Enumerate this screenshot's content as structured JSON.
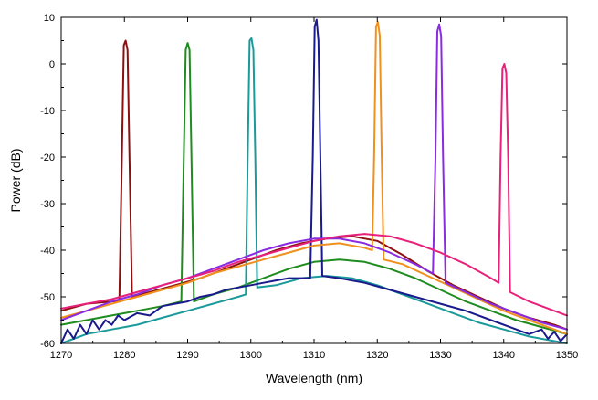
{
  "chart_data": {
    "type": "line",
    "title": "",
    "xlabel": "Wavelength (nm)",
    "ylabel": "Power (dB)",
    "xlim": [
      1270,
      1350
    ],
    "ylim": [
      -60,
      10
    ],
    "xticks": [
      1270,
      1280,
      1290,
      1300,
      1310,
      1320,
      1330,
      1340,
      1350
    ],
    "yticks": [
      10,
      0,
      -10,
      -20,
      -30,
      -40,
      -50,
      -60
    ],
    "xtick_labels": [
      "1270",
      "1280",
      "1290",
      "1300",
      "1310",
      "1320",
      "1330",
      "1340",
      "1350"
    ],
    "ytick_labels": [
      "10",
      "0",
      "-10",
      "-20",
      "-30",
      "-40",
      "-50",
      "-60"
    ],
    "grid": false,
    "legend": "none",
    "series": [
      {
        "color": "#8B1010",
        "points": [
          [
            1270,
            -53
          ],
          [
            1274,
            -51.5
          ],
          [
            1278,
            -51
          ],
          [
            1279.2,
            -51
          ],
          [
            1279.6,
            -20
          ],
          [
            1279.9,
            4
          ],
          [
            1280.2,
            5
          ],
          [
            1280.5,
            3
          ],
          [
            1280.8,
            -20
          ],
          [
            1281.2,
            -50
          ],
          [
            1284,
            -49
          ],
          [
            1288,
            -47.5
          ],
          [
            1292,
            -46
          ],
          [
            1296,
            -44
          ],
          [
            1300,
            -42
          ],
          [
            1304,
            -40
          ],
          [
            1308,
            -38.5
          ],
          [
            1312,
            -37.5
          ],
          [
            1316,
            -37
          ],
          [
            1320,
            -38
          ],
          [
            1324,
            -41
          ],
          [
            1328,
            -44.5
          ],
          [
            1332,
            -47.5
          ],
          [
            1336,
            -50
          ],
          [
            1340,
            -52.5
          ],
          [
            1344,
            -54.5
          ],
          [
            1348,
            -56
          ],
          [
            1350,
            -57
          ]
        ]
      },
      {
        "color": "#1E8C1E",
        "points": [
          [
            1270,
            -56
          ],
          [
            1274,
            -55
          ],
          [
            1278,
            -54
          ],
          [
            1282,
            -53
          ],
          [
            1286,
            -52
          ],
          [
            1289,
            -51
          ],
          [
            1289.4,
            -20
          ],
          [
            1289.7,
            3
          ],
          [
            1290,
            4.5
          ],
          [
            1290.3,
            3
          ],
          [
            1290.6,
            -20
          ],
          [
            1291,
            -51
          ],
          [
            1294,
            -49.5
          ],
          [
            1298,
            -48
          ],
          [
            1302,
            -46
          ],
          [
            1306,
            -44
          ],
          [
            1310,
            -42.5
          ],
          [
            1314,
            -42
          ],
          [
            1318,
            -42.5
          ],
          [
            1322,
            -44
          ],
          [
            1326,
            -46
          ],
          [
            1330,
            -48.5
          ],
          [
            1334,
            -51
          ],
          [
            1338,
            -53
          ],
          [
            1342,
            -55
          ],
          [
            1346,
            -56.5
          ],
          [
            1350,
            -58
          ]
        ]
      },
      {
        "color": "#1A9A9A",
        "points": [
          [
            1270,
            -60
          ],
          [
            1274,
            -58
          ],
          [
            1278,
            -57
          ],
          [
            1282,
            -56
          ],
          [
            1286,
            -54.5
          ],
          [
            1290,
            -53
          ],
          [
            1294,
            -51.5
          ],
          [
            1298,
            -50
          ],
          [
            1299.2,
            -49.5
          ],
          [
            1299.5,
            -20
          ],
          [
            1299.8,
            5
          ],
          [
            1300.1,
            5.5
          ],
          [
            1300.4,
            3
          ],
          [
            1300.7,
            -20
          ],
          [
            1301,
            -48
          ],
          [
            1304,
            -47.5
          ],
          [
            1308,
            -46
          ],
          [
            1312,
            -45.5
          ],
          [
            1316,
            -46
          ],
          [
            1320,
            -47.5
          ],
          [
            1324,
            -49.5
          ],
          [
            1328,
            -51.5
          ],
          [
            1332,
            -53.5
          ],
          [
            1336,
            -55.5
          ],
          [
            1340,
            -57
          ],
          [
            1344,
            -58.5
          ],
          [
            1350,
            -60
          ]
        ]
      },
      {
        "color": "#1A1A8C",
        "points": [
          [
            1270,
            -60
          ],
          [
            1271,
            -57
          ],
          [
            1272,
            -59
          ],
          [
            1273,
            -56
          ],
          [
            1274,
            -58
          ],
          [
            1275,
            -55
          ],
          [
            1276,
            -57
          ],
          [
            1277,
            -55
          ],
          [
            1278,
            -56
          ],
          [
            1279,
            -54
          ],
          [
            1280,
            -55
          ],
          [
            1282,
            -53.5
          ],
          [
            1284,
            -54
          ],
          [
            1286,
            -52
          ],
          [
            1288,
            -51.5
          ],
          [
            1290,
            -51
          ],
          [
            1292,
            -50
          ],
          [
            1294,
            -49.5
          ],
          [
            1296,
            -48.5
          ],
          [
            1298,
            -48
          ],
          [
            1300,
            -47.5
          ],
          [
            1302,
            -47
          ],
          [
            1304,
            -46.5
          ],
          [
            1306,
            -46
          ],
          [
            1308,
            -46
          ],
          [
            1309.4,
            -46
          ],
          [
            1309.8,
            -20
          ],
          [
            1310.1,
            8
          ],
          [
            1310.4,
            9.5
          ],
          [
            1310.7,
            5
          ],
          [
            1311,
            -20
          ],
          [
            1311.3,
            -45.5
          ],
          [
            1314,
            -46
          ],
          [
            1318,
            -47
          ],
          [
            1322,
            -48.5
          ],
          [
            1326,
            -50
          ],
          [
            1330,
            -51.5
          ],
          [
            1334,
            -53
          ],
          [
            1338,
            -55
          ],
          [
            1342,
            -57
          ],
          [
            1344,
            -58
          ],
          [
            1346,
            -57
          ],
          [
            1347,
            -59
          ],
          [
            1348,
            -57.5
          ],
          [
            1349,
            -59.5
          ],
          [
            1350,
            -58
          ]
        ]
      },
      {
        "color": "#F0901E",
        "points": [
          [
            1270,
            -54.5
          ],
          [
            1274,
            -53
          ],
          [
            1278,
            -51.5
          ],
          [
            1282,
            -50
          ],
          [
            1286,
            -48.5
          ],
          [
            1290,
            -47
          ],
          [
            1294,
            -45
          ],
          [
            1298,
            -43.5
          ],
          [
            1302,
            -42
          ],
          [
            1306,
            -40.5
          ],
          [
            1310,
            -39
          ],
          [
            1314,
            -38.5
          ],
          [
            1318,
            -39.5
          ],
          [
            1319.2,
            -40
          ],
          [
            1319.5,
            -20
          ],
          [
            1319.8,
            8
          ],
          [
            1320.1,
            9
          ],
          [
            1320.4,
            6
          ],
          [
            1320.7,
            -20
          ],
          [
            1321,
            -42
          ],
          [
            1324,
            -43
          ],
          [
            1328,
            -45.5
          ],
          [
            1332,
            -48
          ],
          [
            1336,
            -50.5
          ],
          [
            1340,
            -53
          ],
          [
            1344,
            -55
          ],
          [
            1348,
            -57
          ],
          [
            1350,
            -58
          ]
        ]
      },
      {
        "color": "#8A2BE2",
        "points": [
          [
            1270,
            -55
          ],
          [
            1274,
            -53
          ],
          [
            1278,
            -51
          ],
          [
            1282,
            -49.5
          ],
          [
            1286,
            -47.5
          ],
          [
            1290,
            -46
          ],
          [
            1294,
            -44
          ],
          [
            1298,
            -42
          ],
          [
            1302,
            -40
          ],
          [
            1306,
            -38.5
          ],
          [
            1310,
            -37.5
          ],
          [
            1314,
            -37.5
          ],
          [
            1318,
            -38.5
          ],
          [
            1322,
            -40.5
          ],
          [
            1326,
            -43
          ],
          [
            1328.8,
            -45
          ],
          [
            1329.2,
            -20
          ],
          [
            1329.5,
            7
          ],
          [
            1329.8,
            8.5
          ],
          [
            1330.1,
            6
          ],
          [
            1330.4,
            -20
          ],
          [
            1330.8,
            -47
          ],
          [
            1334,
            -49
          ],
          [
            1338,
            -51.5
          ],
          [
            1342,
            -53.5
          ],
          [
            1346,
            -55.5
          ],
          [
            1350,
            -57
          ]
        ]
      },
      {
        "color": "#E8207A",
        "points": [
          [
            1270,
            -52.5
          ],
          [
            1274,
            -51.5
          ],
          [
            1278,
            -50.5
          ],
          [
            1282,
            -49
          ],
          [
            1286,
            -47.5
          ],
          [
            1290,
            -46
          ],
          [
            1294,
            -44.5
          ],
          [
            1298,
            -42.5
          ],
          [
            1302,
            -41
          ],
          [
            1306,
            -39.5
          ],
          [
            1310,
            -38
          ],
          [
            1314,
            -37
          ],
          [
            1318,
            -36.5
          ],
          [
            1322,
            -37
          ],
          [
            1326,
            -38.5
          ],
          [
            1330,
            -40.5
          ],
          [
            1334,
            -43
          ],
          [
            1338,
            -46
          ],
          [
            1339.2,
            -47
          ],
          [
            1339.5,
            -20
          ],
          [
            1339.8,
            -1
          ],
          [
            1340.1,
            0
          ],
          [
            1340.4,
            -2
          ],
          [
            1340.7,
            -20
          ],
          [
            1341,
            -49
          ],
          [
            1344,
            -51
          ],
          [
            1348,
            -53
          ],
          [
            1350,
            -54
          ]
        ]
      }
    ]
  }
}
